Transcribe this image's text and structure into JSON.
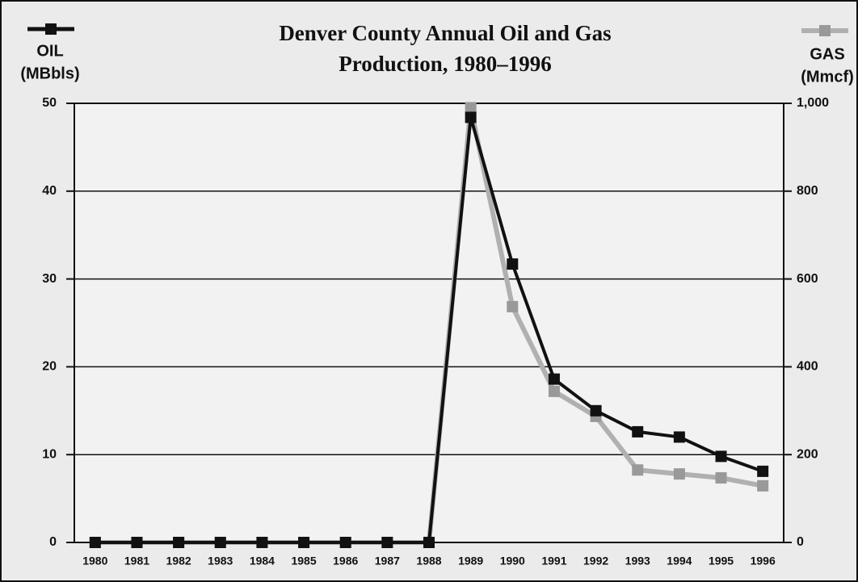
{
  "chart_data": {
    "type": "line",
    "title": [
      "Denver County Annual Oil and Gas",
      "Production, 1980–1996"
    ],
    "y_label": "(MBbls)",
    "y2_label": "(Mmcf)",
    "categories": [
      "1980",
      "1981",
      "1982",
      "1983",
      "1984",
      "1985",
      "1986",
      "1987",
      "1988",
      "1989",
      "1990",
      "1991",
      "1992",
      "1993",
      "1994",
      "1995",
      "1996"
    ],
    "series": [
      {
        "name": "OIL",
        "color": "#111111",
        "axis": "y",
        "values": [
          0,
          0,
          0,
          0,
          0,
          0,
          0,
          0,
          0,
          48.4,
          31.7,
          18.6,
          15.0,
          12.6,
          12.0,
          9.8,
          8.1
        ]
      },
      {
        "name": "GAS",
        "color": "#b0b0b0",
        "axis": "y2",
        "values": [
          0,
          0,
          0,
          0,
          0,
          0,
          0,
          0,
          0,
          990,
          537,
          344,
          287,
          165,
          156,
          147,
          129
        ]
      }
    ],
    "ylim": [
      0,
      50
    ],
    "yticks": [
      0,
      10,
      20,
      30,
      40,
      50
    ],
    "y2lim": [
      0,
      1000
    ],
    "y2ticks": [
      0,
      200,
      400,
      600,
      800,
      {
        "value": 1000,
        "label": "1,000"
      }
    ],
    "grid": true
  }
}
